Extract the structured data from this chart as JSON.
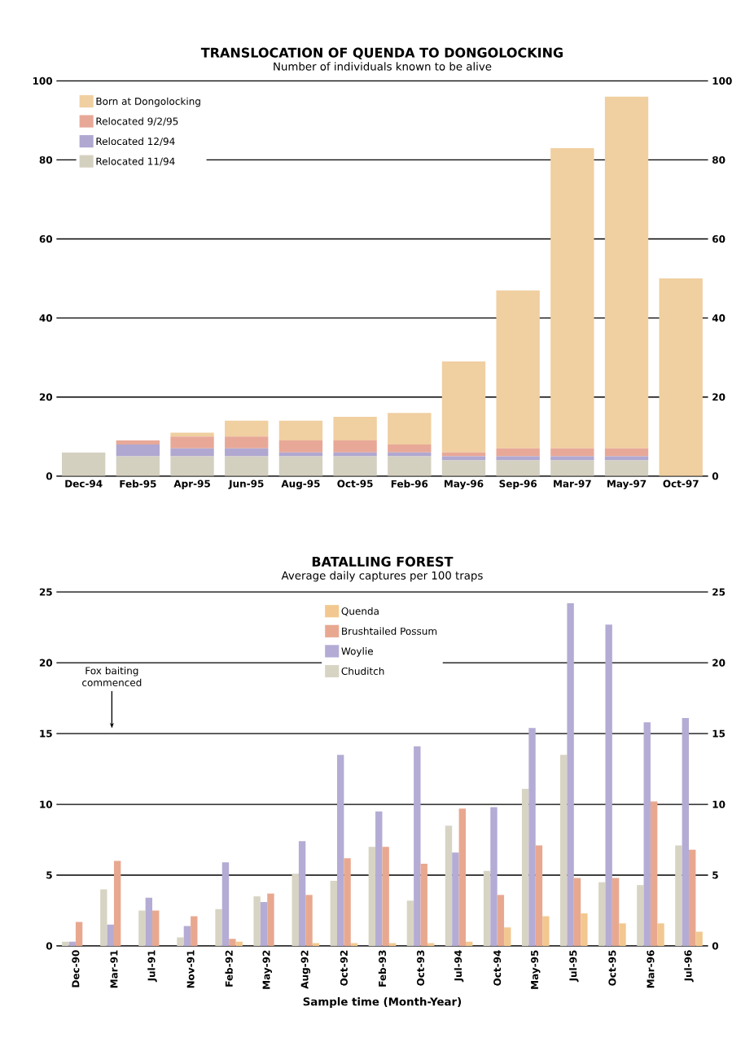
{
  "chart_data": [
    {
      "type": "bar",
      "stacked": true,
      "title": "TRANSLOCATION OF QUENDA TO DONGOLOCKING",
      "subtitle": "Number of individuals known to be alive",
      "categories": [
        "Dec-94",
        "Feb-95",
        "Apr-95",
        "Jun-95",
        "Aug-95",
        "Oct-95",
        "Feb-96",
        "May-96",
        "Sep-96",
        "Mar-97",
        "May-97",
        "Oct-97"
      ],
      "series": [
        {
          "name": "Relocated 11/94",
          "color": "#d4d0c0",
          "values": [
            6,
            5,
            5,
            5,
            5,
            5,
            5,
            4,
            4,
            4,
            4,
            0
          ]
        },
        {
          "name": "Relocated 12/94",
          "color": "#b0a8d0",
          "values": [
            0,
            3,
            2,
            2,
            1,
            1,
            1,
            1,
            1,
            1,
            1,
            0
          ]
        },
        {
          "name": "Relocated 9/2/95",
          "color": "#e8a898",
          "values": [
            0,
            1,
            3,
            3,
            3,
            3,
            2,
            1,
            2,
            2,
            2,
            0
          ]
        },
        {
          "name": "Born at Dongolocking",
          "color": "#f0cfa0",
          "values": [
            0,
            0,
            1,
            4,
            5,
            6,
            8,
            23,
            40,
            76,
            89,
            50
          ]
        }
      ],
      "ylim": [
        0,
        100
      ],
      "yticks": [
        0,
        20,
        40,
        60,
        80,
        100
      ],
      "y2lim": [
        0,
        100
      ],
      "y2ticks": [
        0,
        20,
        40,
        60,
        80,
        100
      ],
      "grid": "y",
      "legend": "top left"
    },
    {
      "type": "bar",
      "title": "BATALLING FOREST",
      "subtitle": "Average daily captures per 100 traps",
      "xlabel": "Sample time (Month-Year)",
      "categories": [
        "Dec-90",
        "Mar-91",
        "Jul-91",
        "Nov-91",
        "Feb-92",
        "May-92",
        "Aug-92",
        "Oct-92",
        "Feb-93",
        "Oct-93",
        "Jul-94",
        "Oct-94",
        "May-95",
        "Jul-95",
        "Oct-95",
        "Mar-96",
        "Jul-96"
      ],
      "series": [
        {
          "name": "Chuditch",
          "color": "#d8d4c4",
          "values": [
            0.3,
            4,
            2.5,
            0.6,
            2.6,
            3.5,
            5.1,
            4.6,
            7,
            3.2,
            8.5,
            5.3,
            11.1,
            13.5,
            4.5,
            4.3,
            7.1
          ]
        },
        {
          "name": "Woylie",
          "color": "#b4acd4",
          "values": [
            0.3,
            1.5,
            3.4,
            1.4,
            5.9,
            3.1,
            7.4,
            13.5,
            9.5,
            14.1,
            6.6,
            9.8,
            15.4,
            24.2,
            22.7,
            15.8,
            16.1
          ]
        },
        {
          "name": "Brushtailed Possum",
          "color": "#e8a890",
          "values": [
            1.7,
            6,
            2.5,
            2.1,
            0.5,
            3.7,
            3.6,
            6.2,
            7,
            5.8,
            9.7,
            3.6,
            7.1,
            4.8,
            4.8,
            10.2,
            6.8
          ]
        },
        {
          "name": "Quenda",
          "color": "#f2c890",
          "values": [
            0,
            0,
            0,
            0,
            0.3,
            0,
            0.2,
            0.2,
            0.2,
            0.2,
            0.3,
            1.3,
            2.1,
            2.3,
            1.6,
            1.6,
            1
          ]
        }
      ],
      "annotations": [
        "Fox baiting commenced"
      ],
      "ylim": [
        0,
        25
      ],
      "yticks": [
        0,
        5,
        10,
        15,
        20,
        25
      ],
      "y2lim": [
        0,
        25
      ],
      "y2ticks": [
        0,
        5,
        10,
        15,
        20,
        25
      ],
      "grid": "y",
      "legend": "top"
    }
  ]
}
